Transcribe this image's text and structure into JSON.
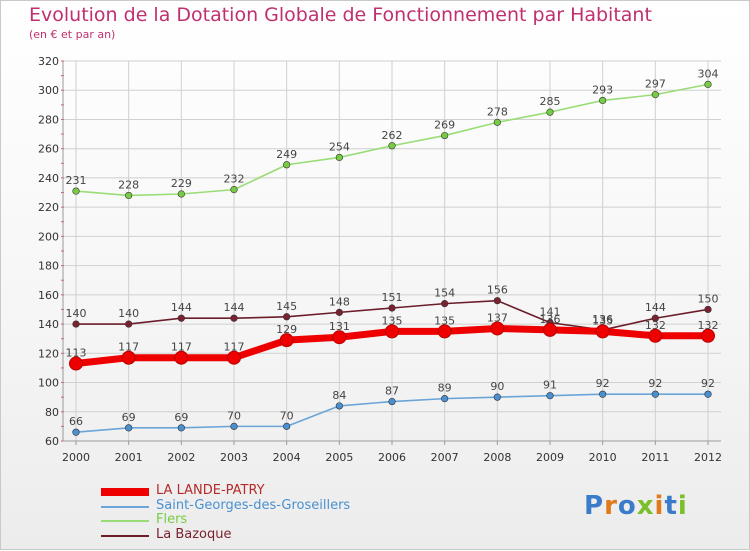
{
  "title": "Evolution de la Dotation Globale de Fonctionnement par Habitant",
  "subtitle": "(en € et par an)",
  "logo_text": "Proxiti",
  "colors": {
    "title": "#c0306f",
    "grid": "#d0d0d0",
    "logo": [
      "#3a7cc9",
      "#e07a1a",
      "#3a7cc9",
      "#7bbf2a",
      "#e07a1a",
      "#3a7cc9",
      "#7bbf2a"
    ]
  },
  "chart_data": {
    "type": "line",
    "title": "Evolution de la Dotation Globale de Fonctionnement par Habitant",
    "subtitle": "(en € et par an)",
    "x": [
      "2000",
      "2001",
      "2002",
      "2003",
      "2004",
      "2005",
      "2006",
      "2007",
      "2008",
      "2009",
      "2010",
      "2011",
      "2012"
    ],
    "ylim": [
      60,
      320
    ],
    "yticks": [
      60,
      80,
      100,
      120,
      140,
      160,
      180,
      200,
      220,
      240,
      260,
      280,
      300,
      320
    ],
    "grid": true,
    "legend_position": "bottom-left",
    "series": [
      {
        "name": "LA LANDE-PATRY",
        "values": [
          113,
          117,
          117,
          117,
          129,
          131,
          135,
          135,
          137,
          136,
          135,
          132,
          132
        ],
        "color": "#ee0000",
        "style": "thick"
      },
      {
        "name": "Saint-Georges-des-Groseillers",
        "values": [
          66,
          69,
          69,
          70,
          70,
          84,
          87,
          89,
          90,
          91,
          92,
          92,
          92
        ],
        "color": "#6aa4d8",
        "marker": "#4a90d0"
      },
      {
        "name": "Flers",
        "values": [
          231,
          228,
          229,
          232,
          249,
          254,
          262,
          269,
          278,
          285,
          293,
          297,
          304
        ],
        "color": "#99dd77",
        "marker": "#77cc44"
      },
      {
        "name": "La Bazoque",
        "values": [
          140,
          140,
          144,
          144,
          145,
          148,
          151,
          154,
          156,
          141,
          136,
          144,
          150
        ],
        "color": "#6b1e2a",
        "marker": "#7a2230"
      }
    ]
  }
}
